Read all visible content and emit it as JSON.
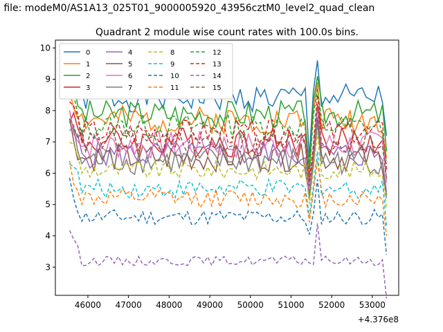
{
  "figure": {
    "suptitle": "n file: modeM0/AS1A13_025T01_9000005920_43956cztM0_level2_quad_clean",
    "title": "Quadrant 2 module wise count rates with 100.0s bins.",
    "offset_label": "+4.376e8"
  },
  "colors": [
    "#1f77b4",
    "#ff7f0e",
    "#2ca02c",
    "#d62728",
    "#9467bd",
    "#8c564b",
    "#e377c2",
    "#7f7f7f",
    "#bcbd22",
    "#17becf",
    "#1f77b4",
    "#ff7f0e",
    "#2ca02c",
    "#d62728",
    "#9467bd",
    "#8c564b"
  ],
  "chart_data": {
    "type": "line",
    "title": "Quadrant 2 module wise count rates with 100.0s bins.",
    "xlabel": "",
    "ylabel": "",
    "x_offset": 437600000,
    "x_start": 45550,
    "x_step": 100,
    "xlim": [
      45200,
      53650
    ],
    "ylim": [
      2.1,
      10.25
    ],
    "xticks": [
      46000,
      47000,
      48000,
      49000,
      50000,
      51000,
      52000,
      53000
    ],
    "yticks": [
      3,
      4,
      5,
      6,
      7,
      8,
      9,
      10
    ],
    "grid": false,
    "legend": {
      "placement": "top-left",
      "ncol": 4
    },
    "series": [
      {
        "name": "0",
        "style": "solid",
        "base": 8.4,
        "amp": 0.45,
        "seed": 1
      },
      {
        "name": "1",
        "style": "solid",
        "base": 7.7,
        "amp": 0.45,
        "seed": 2
      },
      {
        "name": "2",
        "style": "solid",
        "base": 7.9,
        "amp": 0.45,
        "seed": 3
      },
      {
        "name": "3",
        "style": "solid",
        "base": 7.0,
        "amp": 0.5,
        "seed": 4
      },
      {
        "name": "4",
        "style": "solid",
        "base": 6.6,
        "amp": 0.45,
        "seed": 5
      },
      {
        "name": "5",
        "style": "solid",
        "base": 6.5,
        "amp": 0.45,
        "seed": 6
      },
      {
        "name": "6",
        "style": "solid",
        "base": 6.9,
        "amp": 0.45,
        "seed": 7
      },
      {
        "name": "7",
        "style": "solid",
        "base": 6.4,
        "amp": 0.45,
        "seed": 8
      },
      {
        "name": "8",
        "style": "dashed",
        "base": 6.1,
        "amp": 0.3,
        "seed": 9
      },
      {
        "name": "9",
        "style": "dashed",
        "base": 5.5,
        "amp": 0.3,
        "seed": 10
      },
      {
        "name": "10",
        "style": "dashed",
        "base": 4.6,
        "amp": 0.25,
        "seed": 11
      },
      {
        "name": "11",
        "style": "dashed",
        "base": 5.2,
        "amp": 0.3,
        "seed": 12
      },
      {
        "name": "12",
        "style": "dashed",
        "base": 7.5,
        "amp": 0.4,
        "seed": 13
      },
      {
        "name": "13",
        "style": "dashed",
        "base": 7.3,
        "amp": 0.4,
        "seed": 14
      },
      {
        "name": "14",
        "style": "dashed",
        "base": 3.2,
        "amp": 0.15,
        "seed": 15
      },
      {
        "name": "15",
        "style": "dashed",
        "base": 7.0,
        "amp": 0.4,
        "seed": 16
      }
    ]
  }
}
